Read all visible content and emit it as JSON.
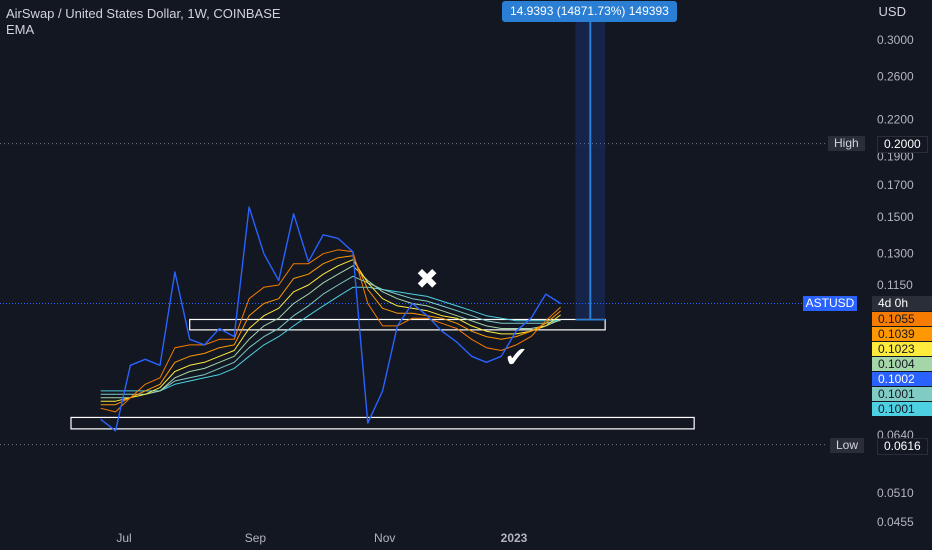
{
  "header": {
    "title": "AirSwap / United States Dollar, 1W, COINBASE",
    "indicator": "EMA"
  },
  "currency": "USD",
  "measure_label": "14.9393 (14871.73%) 149393",
  "high_label": {
    "name": "High",
    "value": "0.2000"
  },
  "low_label": {
    "name": "Low",
    "value": "0.0616"
  },
  "symbol_tag": {
    "symbol": "ASTUSD",
    "countdown": "4d 0h"
  },
  "ema_tags": [
    {
      "value": "0.1055",
      "color": "#f57c00"
    },
    {
      "value": "0.1039",
      "color": "#ff9800"
    },
    {
      "value": "0.1023",
      "color": "#ffeb3b"
    },
    {
      "value": "0.1004",
      "color": "#a5d6a7"
    },
    {
      "value": "0.1002",
      "color": "#2962ff"
    },
    {
      "value": "0.1001",
      "color": "#80cbc4"
    },
    {
      "value": "0.1001",
      "color": "#4dd0e1"
    }
  ],
  "chart_data": {
    "type": "line",
    "title": "AirSwap / United States Dollar, 1W, COINBASE",
    "y_scale": "log",
    "ylim": [
      0.0455,
      0.32
    ],
    "y_ticks": [
      "0.3000",
      "0.2600",
      "0.2200",
      "0.1900",
      "0.1700",
      "0.1500",
      "0.1300",
      "0.1150",
      "0.0640",
      "0.0510",
      "0.0455"
    ],
    "x_ticks": [
      "Jul",
      "Sep",
      "Nov",
      "2023"
    ],
    "x": [
      "2022-06-20",
      "2022-06-27",
      "2022-07-04",
      "2022-07-11",
      "2022-07-18",
      "2022-07-25",
      "2022-08-01",
      "2022-08-08",
      "2022-08-15",
      "2022-08-22",
      "2022-08-29",
      "2022-09-05",
      "2022-09-12",
      "2022-09-19",
      "2022-09-26",
      "2022-10-03",
      "2022-10-10",
      "2022-10-17",
      "2022-10-24",
      "2022-10-31",
      "2022-11-07",
      "2022-11-14",
      "2022-11-21",
      "2022-11-28",
      "2022-12-05",
      "2022-12-12",
      "2022-12-19",
      "2022-12-26",
      "2023-01-02",
      "2023-01-09",
      "2023-01-16",
      "2023-01-23"
    ],
    "series": [
      {
        "values": [
          0.068,
          0.065,
          0.084,
          0.086,
          0.084,
          0.121,
          0.093,
          0.091,
          0.097,
          0.094,
          0.156,
          0.13,
          0.117,
          0.152,
          0.126,
          0.14,
          0.138,
          0.131,
          0.067,
          0.076,
          0.098,
          0.107,
          0.102,
          0.096,
          0.092,
          0.087,
          0.085,
          0.087,
          0.096,
          0.101,
          0.111,
          0.107
        ],
        "color": "#2962ff"
      },
      {
        "values": [
          0.071,
          0.07,
          0.074,
          0.078,
          0.08,
          0.09,
          0.091,
          0.091,
          0.093,
          0.093,
          0.109,
          0.114,
          0.115,
          0.125,
          0.125,
          0.13,
          0.132,
          0.131,
          0.107,
          0.098,
          0.098,
          0.101,
          0.101,
          0.099,
          0.097,
          0.093,
          0.09,
          0.089,
          0.091,
          0.094,
          0.1,
          0.1055
        ],
        "color": "#f57c00"
      },
      {
        "values": [
          0.072,
          0.072,
          0.074,
          0.076,
          0.078,
          0.085,
          0.087,
          0.088,
          0.09,
          0.091,
          0.102,
          0.107,
          0.109,
          0.118,
          0.12,
          0.125,
          0.128,
          0.129,
          0.113,
          0.105,
          0.103,
          0.103,
          0.102,
          0.101,
          0.099,
          0.096,
          0.094,
          0.093,
          0.094,
          0.096,
          0.099,
          0.1039
        ],
        "color": "#ff9800"
      },
      {
        "values": [
          0.073,
          0.073,
          0.074,
          0.075,
          0.077,
          0.082,
          0.084,
          0.085,
          0.087,
          0.089,
          0.097,
          0.102,
          0.105,
          0.112,
          0.115,
          0.12,
          0.124,
          0.127,
          0.116,
          0.109,
          0.106,
          0.105,
          0.104,
          0.102,
          0.101,
          0.098,
          0.096,
          0.095,
          0.095,
          0.096,
          0.098,
          0.1023
        ],
        "color": "#ffeb3b"
      },
      {
        "values": [
          0.074,
          0.074,
          0.074,
          0.075,
          0.076,
          0.08,
          0.082,
          0.083,
          0.085,
          0.087,
          0.093,
          0.098,
          0.101,
          0.107,
          0.111,
          0.116,
          0.12,
          0.124,
          0.117,
          0.112,
          0.109,
          0.107,
          0.106,
          0.104,
          0.102,
          0.1,
          0.098,
          0.097,
          0.097,
          0.097,
          0.098,
          0.1004
        ],
        "color": "#a5d6a7"
      },
      {
        "values": [
          0.075,
          0.075,
          0.075,
          0.075,
          0.076,
          0.079,
          0.08,
          0.081,
          0.083,
          0.085,
          0.09,
          0.094,
          0.097,
          0.102,
          0.106,
          0.111,
          0.115,
          0.119,
          0.116,
          0.113,
          0.111,
          0.109,
          0.108,
          0.106,
          0.104,
          0.102,
          0.1,
          0.099,
          0.099,
          0.099,
          0.099,
          0.1001
        ],
        "color": "#80cbc4"
      },
      {
        "values": [
          0.076,
          0.076,
          0.076,
          0.076,
          0.076,
          0.078,
          0.079,
          0.08,
          0.081,
          0.083,
          0.087,
          0.091,
          0.094,
          0.098,
          0.102,
          0.106,
          0.11,
          0.114,
          0.114,
          0.113,
          0.112,
          0.111,
          0.11,
          0.108,
          0.106,
          0.104,
          0.102,
          0.101,
          0.1,
          0.1,
          0.1,
          0.1001
        ],
        "color": "#4dd0e1"
      }
    ],
    "last_price": 0.107,
    "high": 0.2,
    "low": 0.0616,
    "zones": [
      {
        "y_range": [
          0.0965,
          0.1005
        ],
        "x_range": [
          "2022-08-01",
          "2023-02-13"
        ]
      },
      {
        "y_range": [
          0.0655,
          0.0685
        ],
        "x_range": [
          "2022-06-06",
          "2023-03-27"
        ]
      }
    ],
    "markers": [
      {
        "symbol": "✖",
        "date": "2022-11-21",
        "value": 0.118,
        "color": "#ffffff"
      },
      {
        "symbol": "✔",
        "date": "2023-01-02",
        "value": 0.087,
        "color": "#ffffff"
      }
    ],
    "measurement": {
      "from_date": "2023-01-30",
      "to_date": "2023-02-13",
      "from_value": 0.1004,
      "label": "14.9393 (14871.73%) 149393"
    },
    "grid": false
  }
}
